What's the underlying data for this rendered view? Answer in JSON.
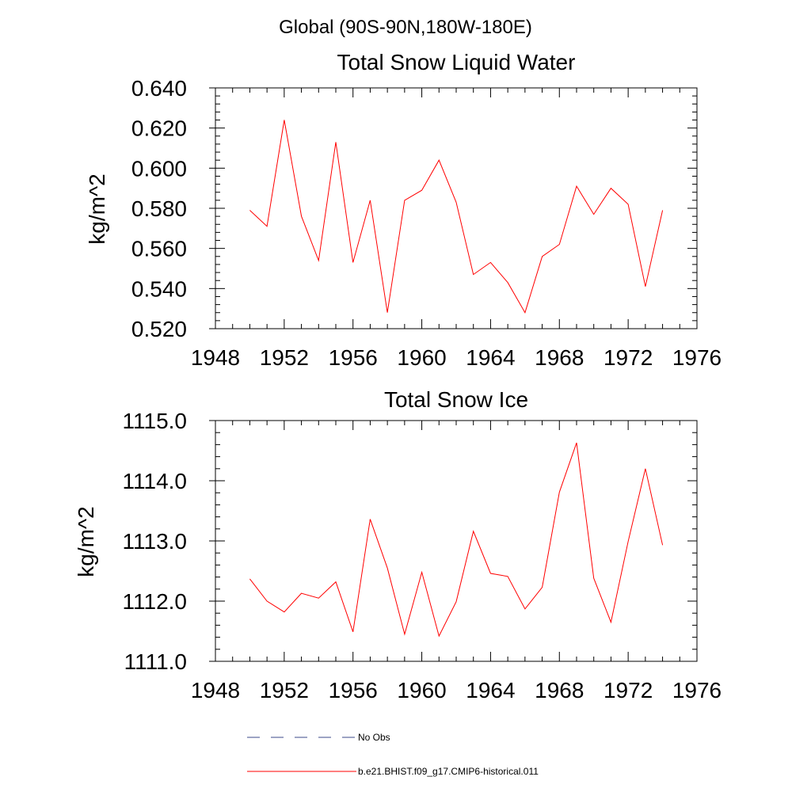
{
  "figure": {
    "suptitle": "Global (90S-90N,180W-180E)"
  },
  "chart_data": [
    {
      "type": "line",
      "title": "Total Snow Liquid Water",
      "ylabel": "kg/m^2",
      "xlabel": "",
      "xlim": [
        1948,
        1976
      ],
      "ylim": [
        0.52,
        0.64
      ],
      "xticks": [
        "1948",
        "1952",
        "1956",
        "1960",
        "1964",
        "1968",
        "1972",
        "1976"
      ],
      "yticks": [
        "0.520",
        "0.540",
        "0.560",
        "0.580",
        "0.600",
        "0.620",
        "0.640"
      ],
      "series": [
        {
          "color": "#ff0000",
          "x": [
            1950,
            1951,
            1952,
            1953,
            1954,
            1955,
            1956,
            1957,
            1958,
            1959,
            1960,
            1961,
            1962,
            1963,
            1964,
            1965,
            1966,
            1967,
            1968,
            1969,
            1970,
            1971,
            1972,
            1973,
            1974
          ],
          "values": [
            0.579,
            0.571,
            0.624,
            0.576,
            0.554,
            0.613,
            0.553,
            0.584,
            0.528,
            0.584,
            0.589,
            0.604,
            0.583,
            0.547,
            0.553,
            0.543,
            0.528,
            0.556,
            0.562,
            0.591,
            0.577,
            0.59,
            0.582,
            0.541,
            0.579
          ]
        }
      ]
    },
    {
      "type": "line",
      "title": "Total Snow Ice",
      "ylabel": "kg/m^2",
      "xlabel": "",
      "xlim": [
        1948,
        1976
      ],
      "ylim": [
        1111.0,
        1115.0
      ],
      "xticks": [
        "1948",
        "1952",
        "1956",
        "1960",
        "1964",
        "1968",
        "1972",
        "1976"
      ],
      "yticks": [
        "1111.0",
        "1112.0",
        "1113.0",
        "1114.0",
        "1115.0"
      ],
      "series": [
        {
          "color": "#ff0000",
          "x": [
            1950,
            1951,
            1952,
            1953,
            1954,
            1955,
            1956,
            1957,
            1958,
            1959,
            1960,
            1961,
            1962,
            1963,
            1964,
            1965,
            1966,
            1967,
            1968,
            1969,
            1970,
            1971,
            1972,
            1973,
            1974
          ],
          "values": [
            1112.37,
            1112.0,
            1111.82,
            1112.13,
            1112.05,
            1112.32,
            1111.49,
            1113.36,
            1112.55,
            1111.45,
            1112.48,
            1111.42,
            1111.99,
            1113.16,
            1112.46,
            1112.41,
            1111.87,
            1112.23,
            1113.81,
            1114.63,
            1112.38,
            1111.65,
            1112.99,
            1114.2,
            1112.93
          ]
        }
      ]
    }
  ],
  "legend": {
    "items": [
      {
        "label": "No Obs",
        "style": "dashed",
        "color": "#3b4a8a"
      },
      {
        "label": "b.e21.BHIST.f09_g17.CMIP6-historical.011",
        "style": "solid",
        "color": "#ff0000"
      }
    ]
  }
}
